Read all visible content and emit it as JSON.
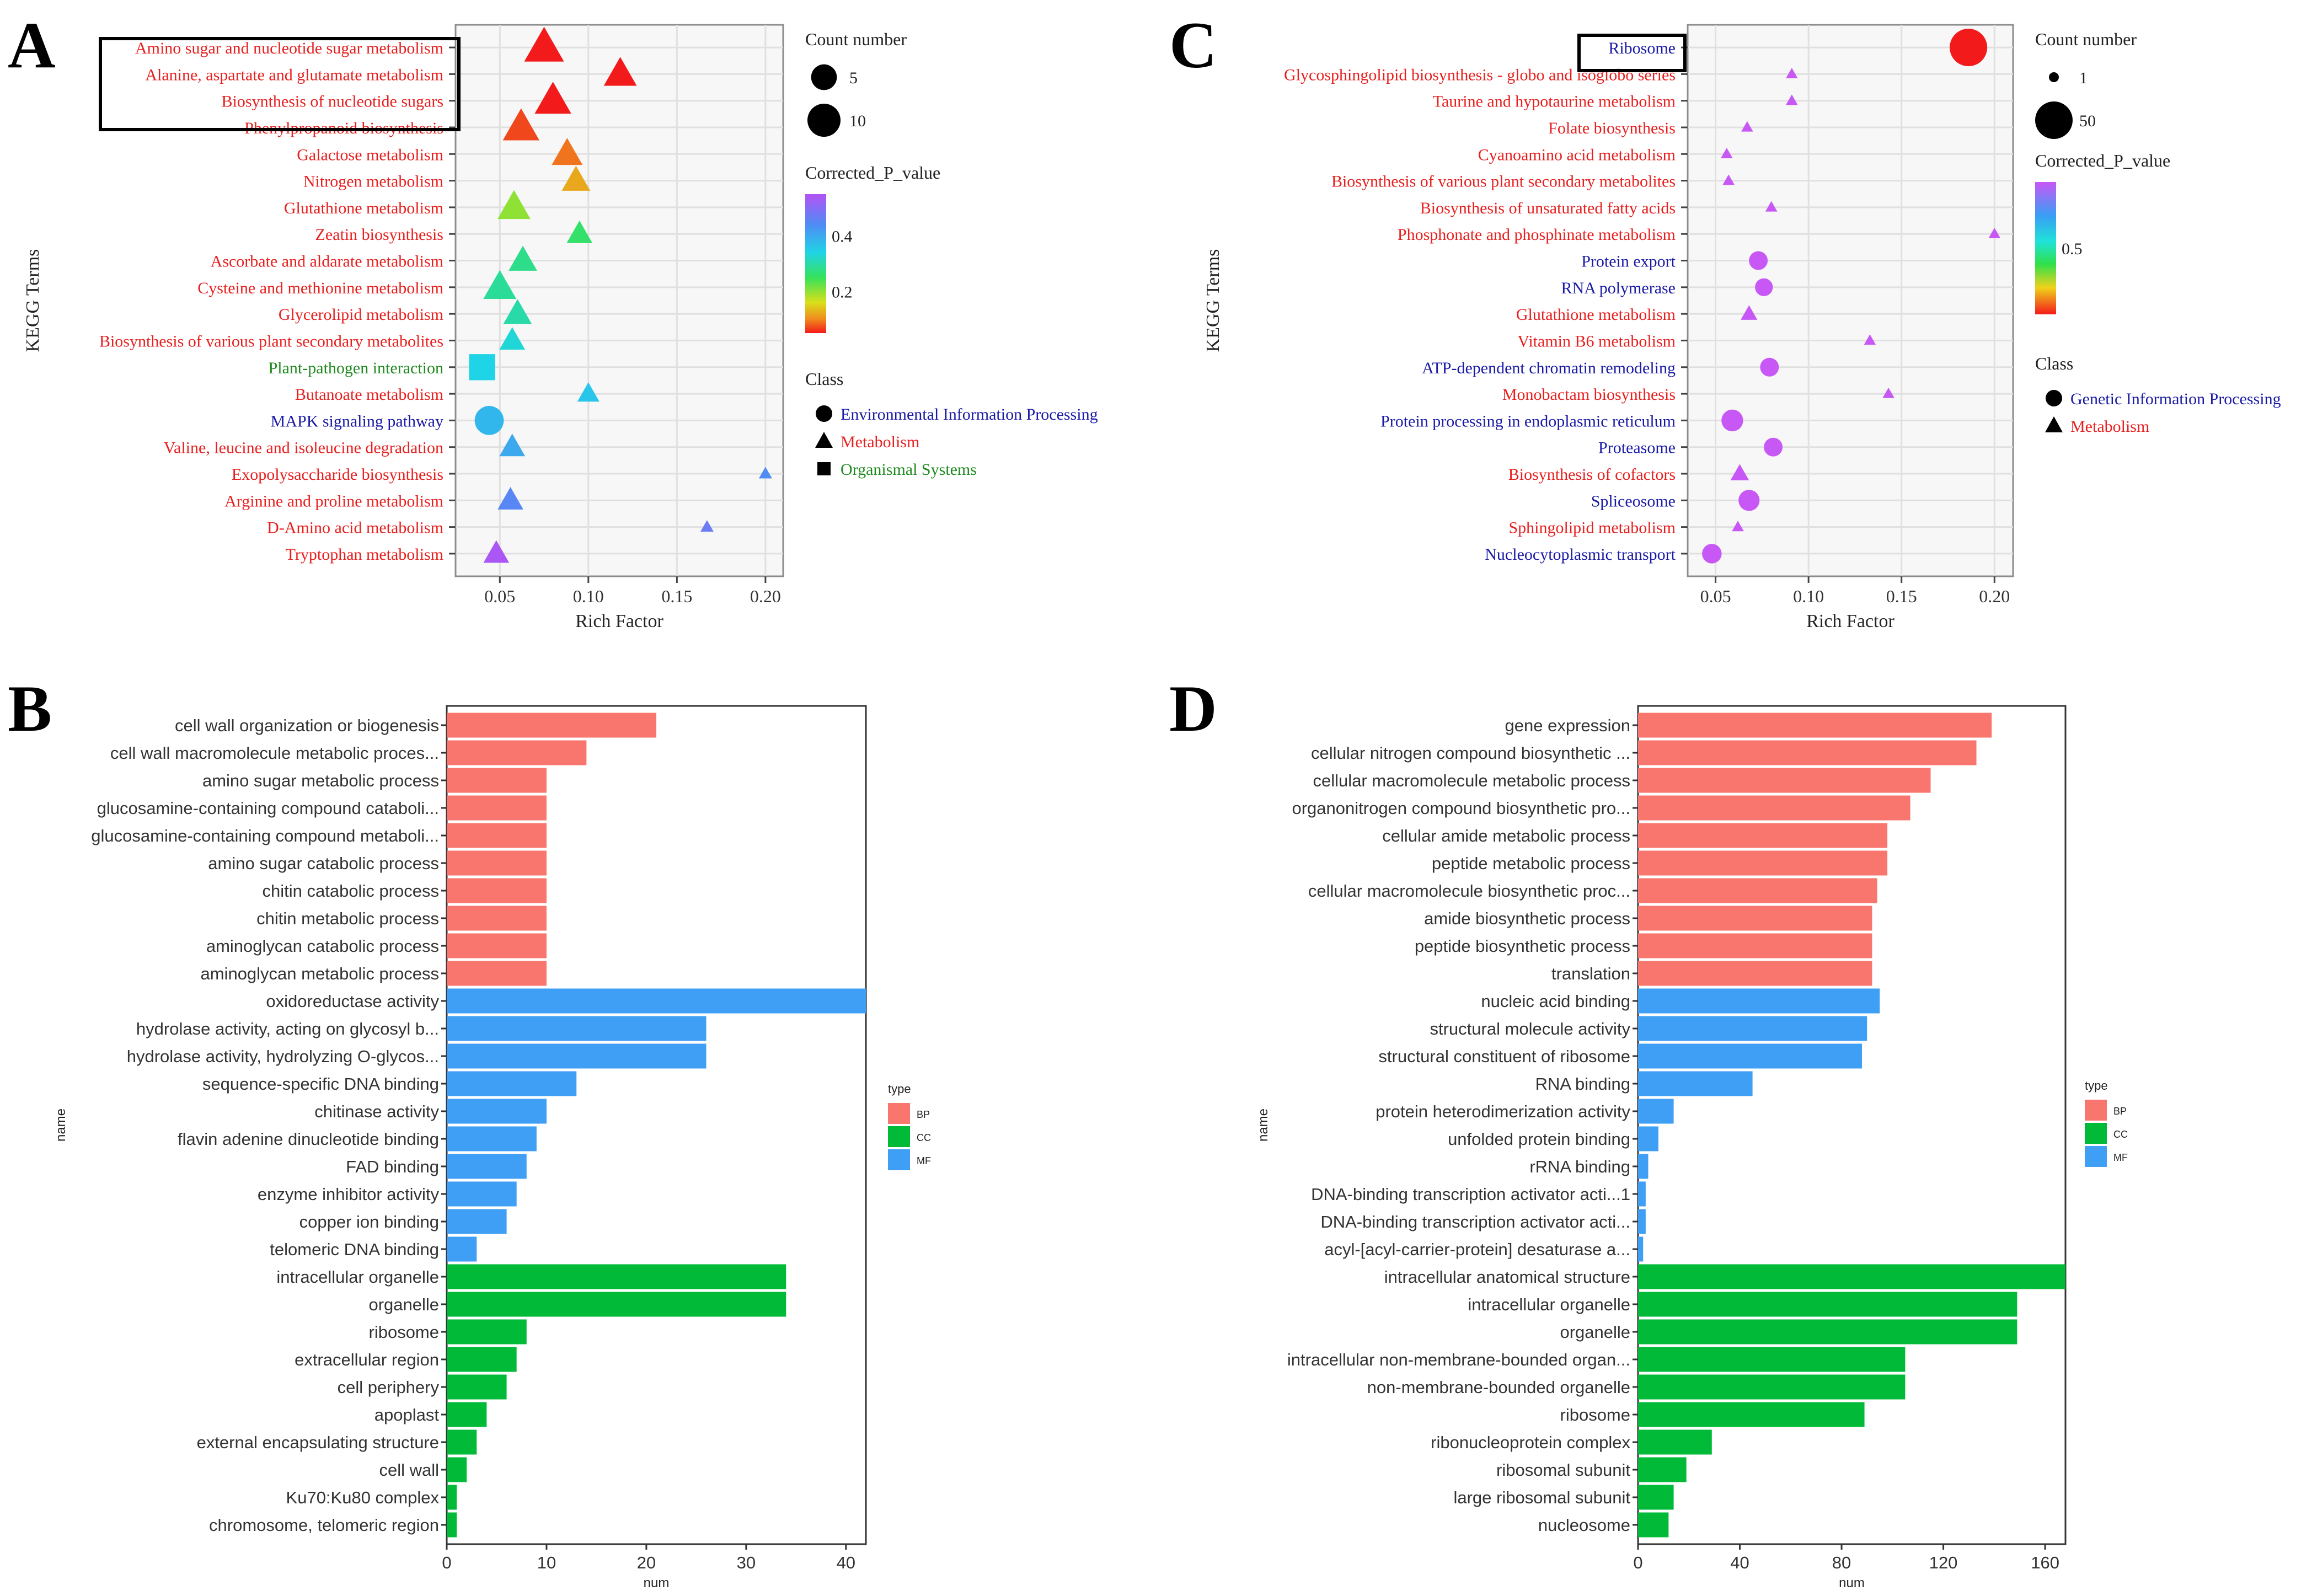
{
  "chart_data": [
    {
      "panel": "A",
      "type": "scatter",
      "xlabel": "Rich Factor",
      "ylabel": "KEGG Terms",
      "xlim": [
        0.025,
        0.21
      ],
      "xticks": [
        0.05,
        0.1,
        0.15,
        0.2
      ],
      "xtick_labels": [
        "0.05",
        "0.10",
        "0.15",
        "0.20"
      ],
      "grid": true,
      "size_legend": {
        "title": "Count number",
        "entries": [
          {
            "label": "5",
            "count": 5
          },
          {
            "label": "10",
            "count": 10
          }
        ]
      },
      "color_legend": {
        "title": "Corrected_P_value",
        "ticks": [
          0.2,
          0.4
        ],
        "tick_labels": [
          "0.2",
          "0.4"
        ],
        "range": [
          0.05,
          0.55
        ]
      },
      "class_legend": {
        "title": "Class",
        "entries": [
          {
            "label": "Environmental Information Processing",
            "shape": "circle",
            "color": "#1a1aa6"
          },
          {
            "label": "Metabolism",
            "shape": "triangle",
            "color": "#e8201f"
          },
          {
            "label": "Organismal Systems",
            "shape": "square",
            "color": "#1f8a1f"
          }
        ]
      },
      "highlight_box": "top-3 terms",
      "terms": [
        {
          "name": "Amino sugar and nucleotide sugar metabolism",
          "x": 0.075,
          "count": 10,
          "p": 0.02,
          "shape": "triangle",
          "label_color": "#e8201f"
        },
        {
          "name": "Alanine, aspartate and glutamate metabolism",
          "x": 0.118,
          "count": 6,
          "p": 0.03,
          "shape": "triangle",
          "label_color": "#e8201f"
        },
        {
          "name": "Biosynthesis of nucleotide sugars",
          "x": 0.08,
          "count": 8,
          "p": 0.04,
          "shape": "triangle",
          "label_color": "#e8201f"
        },
        {
          "name": "Phenylpropanoid biosynthesis",
          "x": 0.062,
          "count": 8,
          "p": 0.07,
          "shape": "triangle",
          "label_color": "#e8201f"
        },
        {
          "name": "Galactose metabolism",
          "x": 0.088,
          "count": 5,
          "p": 0.09,
          "shape": "triangle",
          "label_color": "#e8201f"
        },
        {
          "name": "Nitrogen metabolism",
          "x": 0.093,
          "count": 4,
          "p": 0.12,
          "shape": "triangle",
          "label_color": "#e8201f"
        },
        {
          "name": "Glutathione metabolism",
          "x": 0.058,
          "count": 6,
          "p": 0.2,
          "shape": "triangle",
          "label_color": "#e8201f"
        },
        {
          "name": "Zeatin biosynthesis",
          "x": 0.095,
          "count": 3,
          "p": 0.26,
          "shape": "triangle",
          "label_color": "#e8201f"
        },
        {
          "name": "Ascorbate and aldarate metabolism",
          "x": 0.063,
          "count": 4,
          "p": 0.28,
          "shape": "triangle",
          "label_color": "#e8201f"
        },
        {
          "name": "Cysteine and methionine metabolism",
          "x": 0.05,
          "count": 6,
          "p": 0.29,
          "shape": "triangle",
          "label_color": "#e8201f"
        },
        {
          "name": "Glycerolipid metabolism",
          "x": 0.06,
          "count": 4,
          "p": 0.3,
          "shape": "triangle",
          "label_color": "#e8201f"
        },
        {
          "name": "Biosynthesis of various plant secondary metabolites",
          "x": 0.057,
          "count": 3,
          "p": 0.33,
          "shape": "triangle",
          "label_color": "#e8201f"
        },
        {
          "name": "Plant-pathogen interaction",
          "x": 0.04,
          "count": 6,
          "p": 0.34,
          "shape": "square",
          "label_color": "#1f8a1f"
        },
        {
          "name": "Butanoate metabolism",
          "x": 0.1,
          "count": 2,
          "p": 0.36,
          "shape": "triangle",
          "label_color": "#e8201f"
        },
        {
          "name": "MAPK signaling pathway",
          "x": 0.044,
          "count": 7,
          "p": 0.38,
          "shape": "circle",
          "label_color": "#1a1aa6"
        },
        {
          "name": "Valine, leucine and isoleucine degradation",
          "x": 0.057,
          "count": 3,
          "p": 0.4,
          "shape": "triangle",
          "label_color": "#e8201f"
        },
        {
          "name": "Exopolysaccharide biosynthesis",
          "x": 0.2,
          "count": 1,
          "p": 0.44,
          "shape": "triangle",
          "label_color": "#e8201f"
        },
        {
          "name": "Arginine and proline metabolism",
          "x": 0.056,
          "count": 3,
          "p": 0.45,
          "shape": "triangle",
          "label_color": "#e8201f"
        },
        {
          "name": "D-Amino acid metabolism",
          "x": 0.167,
          "count": 1,
          "p": 0.47,
          "shape": "triangle",
          "label_color": "#e8201f"
        },
        {
          "name": "Tryptophan metabolism",
          "x": 0.048,
          "count": 3,
          "p": 0.54,
          "shape": "triangle",
          "label_color": "#e8201f"
        }
      ]
    },
    {
      "panel": "C",
      "type": "scatter",
      "xlabel": "Rich Factor",
      "ylabel": "KEGG Terms",
      "xlim": [
        0.035,
        0.21
      ],
      "xticks": [
        0.05,
        0.1,
        0.15,
        0.2
      ],
      "xtick_labels": [
        "0.05",
        "0.10",
        "0.15",
        "0.20"
      ],
      "grid": true,
      "size_legend": {
        "title": "Count number",
        "entries": [
          {
            "label": "1",
            "count": 1
          },
          {
            "label": "50",
            "count": 50
          }
        ]
      },
      "color_legend": {
        "title": "Corrected_P_value",
        "ticks": [
          0.5
        ],
        "tick_labels": [
          "0.5"
        ],
        "range": [
          0.0,
          1.0
        ]
      },
      "class_legend": {
        "title": "Class",
        "entries": [
          {
            "label": "Genetic Information Processing",
            "shape": "circle",
            "color": "#1a1aa6"
          },
          {
            "label": "Metabolism",
            "shape": "triangle",
            "color": "#e8201f"
          }
        ]
      },
      "highlight_box": "Ribosome",
      "terms": [
        {
          "name": "Ribosome",
          "x": 0.186,
          "count": 50,
          "p": 0.0,
          "shape": "circle",
          "label_color": "#1a1aa6"
        },
        {
          "name": "Glycosphingolipid biosynthesis - globo and isoglobo series",
          "x": 0.091,
          "count": 1,
          "p": 1.0,
          "shape": "triangle",
          "label_color": "#e8201f"
        },
        {
          "name": "Taurine and hypotaurine metabolism",
          "x": 0.091,
          "count": 1,
          "p": 1.0,
          "shape": "triangle",
          "label_color": "#e8201f"
        },
        {
          "name": "Folate biosynthesis",
          "x": 0.067,
          "count": 1,
          "p": 1.0,
          "shape": "triangle",
          "label_color": "#e8201f"
        },
        {
          "name": "Cyanoamino acid metabolism",
          "x": 0.056,
          "count": 1,
          "p": 1.0,
          "shape": "triangle",
          "label_color": "#e8201f"
        },
        {
          "name": "Biosynthesis of various plant secondary metabolites",
          "x": 0.057,
          "count": 1,
          "p": 1.0,
          "shape": "triangle",
          "label_color": "#e8201f"
        },
        {
          "name": "Biosynthesis of unsaturated fatty acids",
          "x": 0.08,
          "count": 1,
          "p": 1.0,
          "shape": "triangle",
          "label_color": "#e8201f"
        },
        {
          "name": "Phosphonate and phosphinate metabolism",
          "x": 0.2,
          "count": 1,
          "p": 1.0,
          "shape": "triangle",
          "label_color": "#e8201f"
        },
        {
          "name": "Protein export",
          "x": 0.073,
          "count": 6,
          "p": 1.0,
          "shape": "circle",
          "label_color": "#1a1aa6"
        },
        {
          "name": "RNA polymerase",
          "x": 0.076,
          "count": 5,
          "p": 1.0,
          "shape": "circle",
          "label_color": "#1a1aa6"
        },
        {
          "name": "Glutathione metabolism",
          "x": 0.068,
          "count": 2,
          "p": 1.0,
          "shape": "triangle",
          "label_color": "#e8201f"
        },
        {
          "name": "Vitamin B6 metabolism",
          "x": 0.133,
          "count": 1,
          "p": 1.0,
          "shape": "triangle",
          "label_color": "#e8201f"
        },
        {
          "name": "ATP-dependent chromatin remodeling",
          "x": 0.079,
          "count": 6,
          "p": 1.0,
          "shape": "circle",
          "label_color": "#1a1aa6"
        },
        {
          "name": "Monobactam biosynthesis",
          "x": 0.143,
          "count": 1,
          "p": 1.0,
          "shape": "triangle",
          "label_color": "#e8201f"
        },
        {
          "name": "Protein processing in endoplasmic reticulum",
          "x": 0.059,
          "count": 10,
          "p": 1.0,
          "shape": "circle",
          "label_color": "#1a1aa6"
        },
        {
          "name": "Proteasome",
          "x": 0.081,
          "count": 6,
          "p": 1.0,
          "shape": "circle",
          "label_color": "#1a1aa6"
        },
        {
          "name": "Biosynthesis of cofactors",
          "x": 0.063,
          "count": 3,
          "p": 1.0,
          "shape": "triangle",
          "label_color": "#e8201f"
        },
        {
          "name": "Spliceosome",
          "x": 0.068,
          "count": 9,
          "p": 1.0,
          "shape": "circle",
          "label_color": "#1a1aa6"
        },
        {
          "name": "Sphingolipid metabolism",
          "x": 0.062,
          "count": 1,
          "p": 1.0,
          "shape": "triangle",
          "label_color": "#e8201f"
        },
        {
          "name": "Nucleocytoplasmic transport",
          "x": 0.048,
          "count": 7,
          "p": 1.0,
          "shape": "circle",
          "label_color": "#1a1aa6"
        }
      ]
    },
    {
      "panel": "B",
      "type": "bar",
      "orientation": "horizontal",
      "xlabel": "num",
      "ylabel": "name",
      "xlim": [
        0,
        42
      ],
      "xticks": [
        0,
        10,
        20,
        30,
        40
      ],
      "xtick_labels": [
        "0",
        "10",
        "20",
        "30",
        "40"
      ],
      "legend": {
        "title": "type",
        "entries": [
          {
            "label": "BP",
            "color": "#f8766d"
          },
          {
            "label": "CC",
            "color": "#00ba38"
          },
          {
            "label": "MF",
            "color": "#3e9ff5"
          }
        ]
      },
      "bars": [
        {
          "name": "cell wall organization or biogenesis",
          "value": 21,
          "type": "BP"
        },
        {
          "name": "cell wall macromolecule metabolic proces...",
          "value": 14,
          "type": "BP"
        },
        {
          "name": "amino sugar metabolic process",
          "value": 10,
          "type": "BP"
        },
        {
          "name": "glucosamine-containing compound cataboli...",
          "value": 10,
          "type": "BP"
        },
        {
          "name": "glucosamine-containing compound metaboli...",
          "value": 10,
          "type": "BP"
        },
        {
          "name": "amino sugar catabolic process",
          "value": 10,
          "type": "BP"
        },
        {
          "name": "chitin catabolic process",
          "value": 10,
          "type": "BP"
        },
        {
          "name": "chitin metabolic process",
          "value": 10,
          "type": "BP"
        },
        {
          "name": "aminoglycan catabolic process",
          "value": 10,
          "type": "BP"
        },
        {
          "name": "aminoglycan metabolic process",
          "value": 10,
          "type": "BP"
        },
        {
          "name": "oxidoreductase activity",
          "value": 42,
          "type": "MF"
        },
        {
          "name": "hydrolase activity, acting on glycosyl b...",
          "value": 26,
          "type": "MF"
        },
        {
          "name": "hydrolase activity, hydrolyzing O-glycos...",
          "value": 26,
          "type": "MF"
        },
        {
          "name": "sequence-specific DNA binding",
          "value": 13,
          "type": "MF"
        },
        {
          "name": "chitinase activity",
          "value": 10,
          "type": "MF"
        },
        {
          "name": "flavin adenine dinucleotide binding",
          "value": 9,
          "type": "MF"
        },
        {
          "name": "FAD binding",
          "value": 8,
          "type": "MF"
        },
        {
          "name": "enzyme inhibitor activity",
          "value": 7,
          "type": "MF"
        },
        {
          "name": "copper ion binding",
          "value": 6,
          "type": "MF"
        },
        {
          "name": "telomeric DNA binding",
          "value": 3,
          "type": "MF"
        },
        {
          "name": "intracellular organelle",
          "value": 34,
          "type": "CC"
        },
        {
          "name": "organelle",
          "value": 34,
          "type": "CC"
        },
        {
          "name": "ribosome",
          "value": 8,
          "type": "CC"
        },
        {
          "name": "extracellular region",
          "value": 7,
          "type": "CC"
        },
        {
          "name": "cell periphery",
          "value": 6,
          "type": "CC"
        },
        {
          "name": "apoplast",
          "value": 4,
          "type": "CC"
        },
        {
          "name": "external encapsulating structure",
          "value": 3,
          "type": "CC"
        },
        {
          "name": "cell wall",
          "value": 2,
          "type": "CC"
        },
        {
          "name": "Ku70:Ku80 complex",
          "value": 1,
          "type": "CC"
        },
        {
          "name": "chromosome, telomeric region",
          "value": 1,
          "type": "CC"
        }
      ]
    },
    {
      "panel": "D",
      "type": "bar",
      "orientation": "horizontal",
      "xlabel": "num",
      "ylabel": "name",
      "xlim": [
        0,
        168
      ],
      "xticks": [
        0,
        40,
        80,
        120,
        160
      ],
      "xtick_labels": [
        "0",
        "40",
        "80",
        "120",
        "160"
      ],
      "legend": {
        "title": "type",
        "entries": [
          {
            "label": "BP",
            "color": "#f8766d"
          },
          {
            "label": "CC",
            "color": "#00ba38"
          },
          {
            "label": "MF",
            "color": "#3e9ff5"
          }
        ]
      },
      "bars": [
        {
          "name": "gene expression",
          "value": 139,
          "type": "BP"
        },
        {
          "name": "cellular nitrogen compound biosynthetic ...",
          "value": 133,
          "type": "BP"
        },
        {
          "name": "cellular macromolecule metabolic process",
          "value": 115,
          "type": "BP"
        },
        {
          "name": "organonitrogen compound biosynthetic pro...",
          "value": 107,
          "type": "BP"
        },
        {
          "name": "cellular amide metabolic process",
          "value": 98,
          "type": "BP"
        },
        {
          "name": "peptide metabolic process",
          "value": 98,
          "type": "BP"
        },
        {
          "name": "cellular macromolecule biosynthetic proc...",
          "value": 94,
          "type": "BP"
        },
        {
          "name": "amide biosynthetic process",
          "value": 92,
          "type": "BP"
        },
        {
          "name": "peptide biosynthetic process",
          "value": 92,
          "type": "BP"
        },
        {
          "name": "translation",
          "value": 92,
          "type": "BP"
        },
        {
          "name": "nucleic acid binding",
          "value": 95,
          "type": "MF"
        },
        {
          "name": "structural molecule activity",
          "value": 90,
          "type": "MF"
        },
        {
          "name": "structural constituent of ribosome",
          "value": 88,
          "type": "MF"
        },
        {
          "name": "RNA binding",
          "value": 45,
          "type": "MF"
        },
        {
          "name": "protein heterodimerization activity",
          "value": 14,
          "type": "MF"
        },
        {
          "name": "unfolded protein binding",
          "value": 8,
          "type": "MF"
        },
        {
          "name": "rRNA binding",
          "value": 4,
          "type": "MF"
        },
        {
          "name": "DNA-binding transcription activator acti...1",
          "value": 3,
          "type": "MF"
        },
        {
          "name": "DNA-binding transcription activator acti...",
          "value": 3,
          "type": "MF"
        },
        {
          "name": "acyl-[acyl-carrier-protein] desaturase a...",
          "value": 2,
          "type": "MF"
        },
        {
          "name": "intracellular anatomical structure",
          "value": 168,
          "type": "CC"
        },
        {
          "name": "intracellular organelle",
          "value": 149,
          "type": "CC"
        },
        {
          "name": "organelle",
          "value": 149,
          "type": "CC"
        },
        {
          "name": "intracellular non-membrane-bounded organ...",
          "value": 105,
          "type": "CC"
        },
        {
          "name": "non-membrane-bounded organelle",
          "value": 105,
          "type": "CC"
        },
        {
          "name": "ribosome",
          "value": 89,
          "type": "CC"
        },
        {
          "name": "ribonucleoprotein complex",
          "value": 29,
          "type": "CC"
        },
        {
          "name": "ribosomal subunit",
          "value": 19,
          "type": "CC"
        },
        {
          "name": "large ribosomal subunit",
          "value": 14,
          "type": "CC"
        },
        {
          "name": "nucleosome",
          "value": 12,
          "type": "CC"
        }
      ]
    }
  ]
}
